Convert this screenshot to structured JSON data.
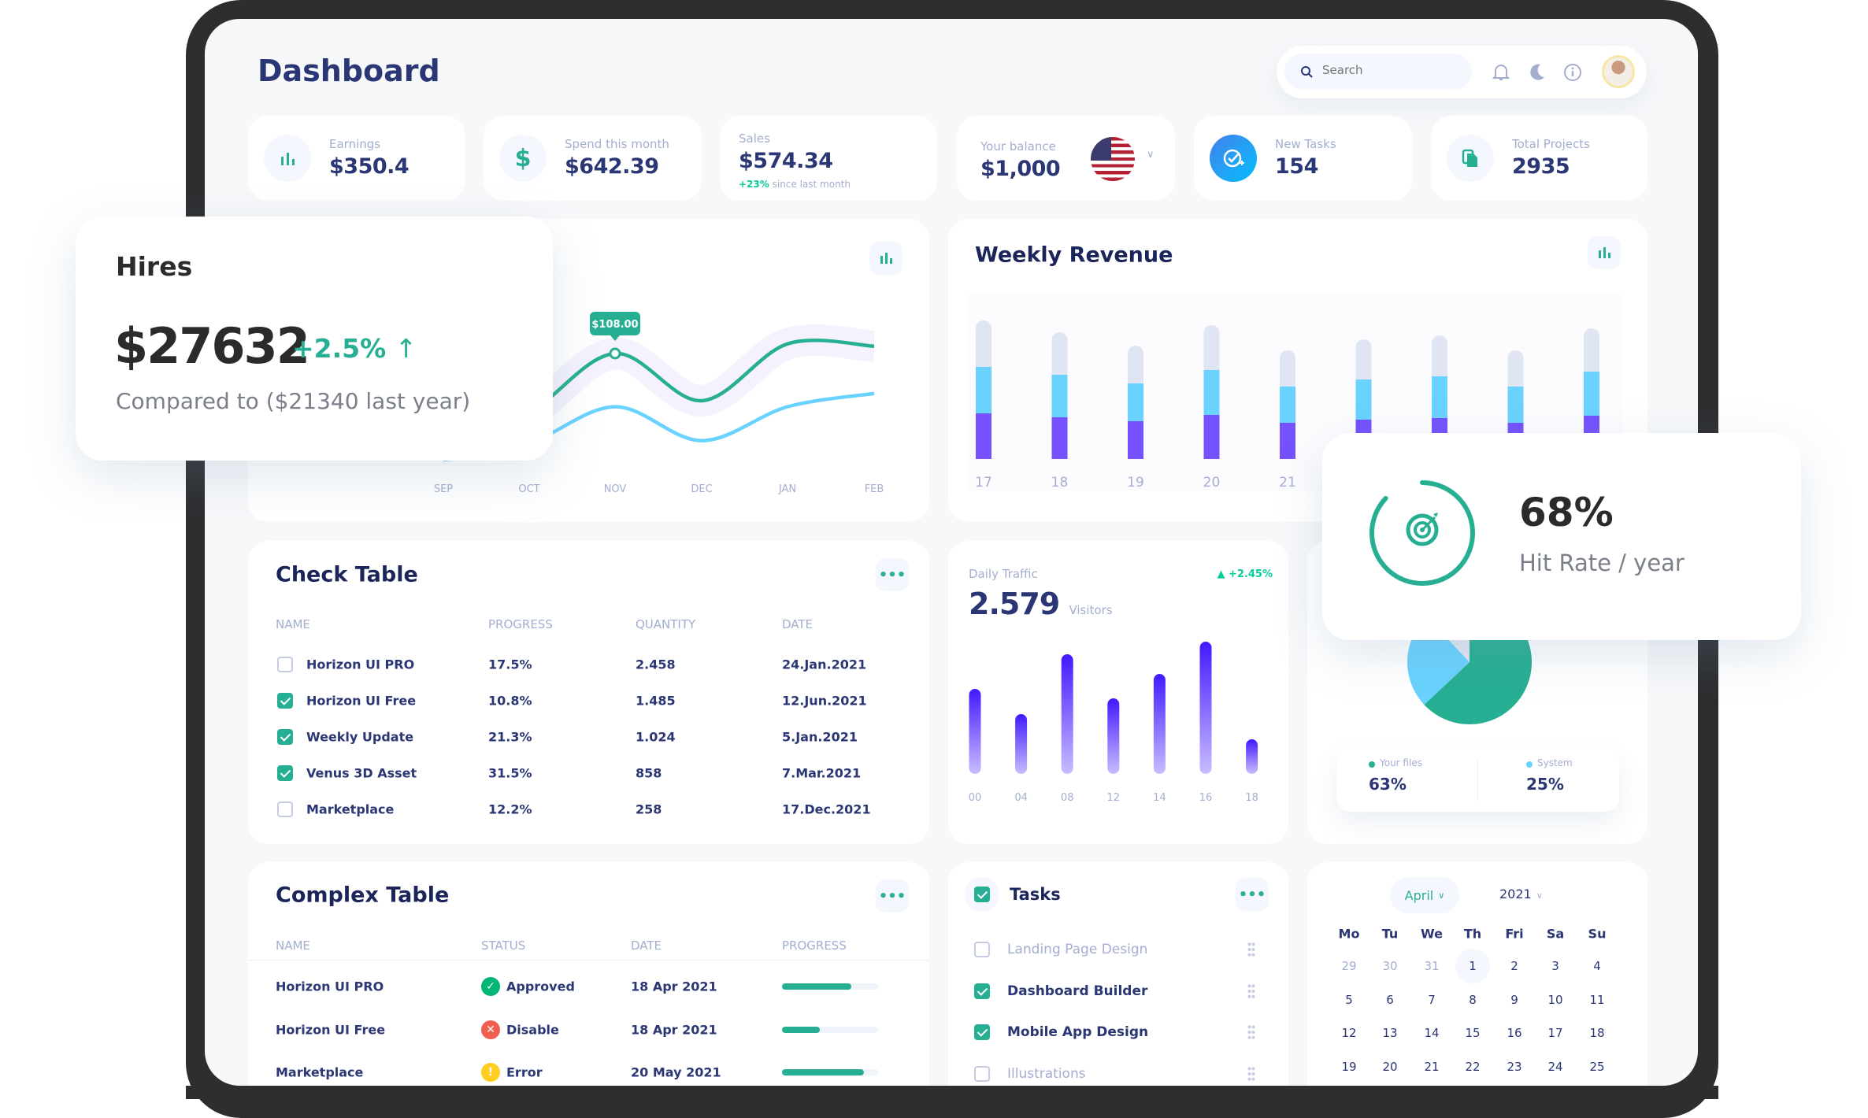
{
  "header": {
    "title": "Dashboard",
    "search_placeholder": "Search"
  },
  "stats": [
    {
      "label": "Earnings",
      "value": "$350.4",
      "icon": "bar-chart-icon"
    },
    {
      "label": "Spend this month",
      "value": "$642.39",
      "icon": "dollar-icon"
    },
    {
      "label": "Sales",
      "value": "$574.34",
      "change": "+23%",
      "change_note": "since last month"
    },
    {
      "label": "Your balance",
      "value": "$1,000",
      "icon": "us-flag-icon"
    },
    {
      "label": "New Tasks",
      "value": "154",
      "icon": "task-add-icon"
    },
    {
      "label": "Total Projects",
      "value": "2935",
      "icon": "file-copy-icon"
    }
  ],
  "hires": {
    "title": "Hires",
    "value": "$27632",
    "change": "+2.5%",
    "compare": "Compared to ($21340 last year)"
  },
  "hit_rate": {
    "value": "68%",
    "label": "Hit Rate / year",
    "percent": 68
  },
  "line_chart": {
    "tooltip": "$108.00"
  },
  "weekly_revenue": {
    "title": "Weekly Revenue"
  },
  "daily_traffic": {
    "label": "Daily Traffic",
    "value": "2.579",
    "unit": "Visitors",
    "change": "+2.45%"
  },
  "pie_legend": [
    {
      "label": "Your files",
      "value": "63%",
      "color": "#26af92"
    },
    {
      "label": "System",
      "value": "25%",
      "color": "#6ad2ff"
    }
  ],
  "check_table": {
    "title": "Check Table",
    "more": "•••",
    "headers": [
      "NAME",
      "PROGRESS",
      "QUANTITY",
      "DATE"
    ],
    "rows": [
      {
        "checked": false,
        "name": "Horizon UI PRO",
        "progress": "17.5%",
        "quantity": "2.458",
        "date": "24.Jan.2021"
      },
      {
        "checked": true,
        "name": "Horizon UI Free",
        "progress": "10.8%",
        "quantity": "1.485",
        "date": "12.Jun.2021"
      },
      {
        "checked": true,
        "name": "Weekly Update",
        "progress": "21.3%",
        "quantity": "1.024",
        "date": "5.Jan.2021"
      },
      {
        "checked": true,
        "name": "Venus 3D Asset",
        "progress": "31.5%",
        "quantity": "858",
        "date": "7.Mar.2021"
      },
      {
        "checked": false,
        "name": "Marketplace",
        "progress": "12.2%",
        "quantity": "258",
        "date": "17.Dec.2021"
      }
    ]
  },
  "complex_table": {
    "title": "Complex Table",
    "more": "•••",
    "headers": [
      "NAME",
      "STATUS",
      "DATE",
      "PROGRESS"
    ],
    "rows": [
      {
        "name": "Horizon UI PRO",
        "status": "Approved",
        "status_color": "#01b574",
        "date": "18 Apr 2021",
        "progress": 0.72
      },
      {
        "name": "Horizon UI Free",
        "status": "Disable",
        "status_color": "#ee5d50",
        "date": "18 Apr 2021",
        "progress": 0.39
      },
      {
        "name": "Marketplace",
        "status": "Error",
        "status_color": "#ffce20",
        "date": "20 May 2021",
        "progress": 0.85
      }
    ]
  },
  "tasks": {
    "title": "Tasks",
    "more": "•••",
    "items": [
      {
        "label": "Landing Page Design",
        "checked": false
      },
      {
        "label": "Dashboard Builder",
        "checked": true
      },
      {
        "label": "Mobile App Design",
        "checked": true
      },
      {
        "label": "Illustrations",
        "checked": false
      }
    ]
  },
  "calendar": {
    "month": "April",
    "year": "2021",
    "weekdays": [
      "Mo",
      "Tu",
      "We",
      "Th",
      "Fri",
      "Sa",
      "Su"
    ],
    "weeks": [
      [
        "29",
        "30",
        "31",
        "1",
        "2",
        "3",
        "4"
      ],
      [
        "5",
        "6",
        "7",
        "8",
        "9",
        "10",
        "11"
      ],
      [
        "12",
        "13",
        "14",
        "15",
        "16",
        "17",
        "18"
      ],
      [
        "19",
        "20",
        "21",
        "22",
        "23",
        "24",
        "25"
      ]
    ],
    "selected": "1"
  },
  "colors": {
    "navy": "#2b3674",
    "teal": "#26af92",
    "purple": "#7551ff",
    "light_blue": "#6ad2ff",
    "muted": "#a3aed0"
  },
  "chart_data": [
    {
      "type": "line",
      "x": [
        "SEP",
        "OCT",
        "NOV",
        "DEC",
        "JAN",
        "FEB"
      ],
      "series": [
        {
          "values": [
            30,
            59,
            108,
            69,
            116,
            114
          ],
          "color": "#26af92"
        },
        {
          "values": [
            20,
            34,
            64,
            36,
            64,
            75
          ],
          "color": "#6ad2ff"
        }
      ],
      "annotation": "$108.00"
    },
    {
      "type": "bar",
      "stacked": true,
      "categories": [
        "17",
        "18",
        "19",
        "20",
        "21",
        "",
        "",
        "",
        ""
      ],
      "series": [
        {
          "color": "#7551ff",
          "values": [
            58,
            53,
            48,
            56,
            46,
            50,
            52,
            46,
            55
          ]
        },
        {
          "color": "#6ad2ff",
          "values": [
            59,
            54,
            48,
            57,
            46,
            51,
            53,
            46,
            56
          ]
        },
        {
          "color": "#dfe5f2",
          "values": [
            59,
            54,
            48,
            57,
            46,
            51,
            52,
            46,
            55
          ]
        }
      ]
    },
    {
      "type": "bar",
      "categories": [
        "00",
        "04",
        "08",
        "12",
        "14",
        "16",
        "18"
      ],
      "values": [
        108,
        76,
        152,
        96,
        127,
        168,
        44
      ]
    },
    {
      "type": "pie",
      "slices": [
        {
          "label": "Your files",
          "value": 63,
          "color": "#26af92"
        },
        {
          "label": "System",
          "value": 25,
          "color": "#6ad2ff"
        },
        {
          "value": 12,
          "color": "#e2e8f0"
        }
      ]
    }
  ]
}
